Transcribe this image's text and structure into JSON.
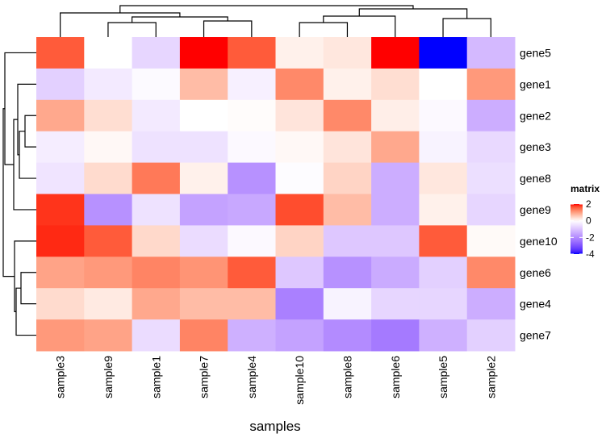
{
  "chart_data": {
    "type": "heatmap",
    "xlabel": "samples",
    "columns": [
      "sample3",
      "sample9",
      "sample1",
      "sample7",
      "sample4",
      "sample10",
      "sample8",
      "sample6",
      "sample5",
      "sample2"
    ],
    "rows": [
      "gene5",
      "gene1",
      "gene2",
      "gene3",
      "gene8",
      "gene9",
      "gene10",
      "gene6",
      "gene4",
      "gene7"
    ],
    "values": [
      [
        1.6,
        0,
        -0.7,
        2,
        1.6,
        0.15,
        0.25,
        2,
        -4,
        -1.2
      ],
      [
        -0.8,
        -0.35,
        -0.08,
        0.7,
        -0.25,
        1.2,
        0.15,
        0.35,
        0,
        1.05
      ],
      [
        0.9,
        0.35,
        -0.35,
        0,
        0.03,
        0.28,
        1.2,
        0.18,
        -0.1,
        -1.4
      ],
      [
        -0.3,
        0.07,
        -0.5,
        -0.5,
        -0.1,
        0.07,
        0.28,
        0.9,
        -0.2,
        -0.65
      ],
      [
        -0.45,
        0.38,
        1.35,
        0.15,
        -1.9,
        -0.05,
        0.45,
        -1.4,
        0.25,
        -0.55
      ],
      [
        1.85,
        -1.9,
        -0.5,
        -1.6,
        -1.5,
        1.7,
        0.7,
        -1.4,
        0.15,
        -0.7
      ],
      [
        1.9,
        1.6,
        0.4,
        -0.6,
        -0.1,
        0.45,
        -0.95,
        -0.95,
        1.6,
        0.05
      ],
      [
        0.95,
        1.05,
        1.25,
        1.1,
        1.6,
        -0.95,
        -1.9,
        -1.45,
        -0.8,
        1.2
      ],
      [
        0.38,
        0.22,
        0.9,
        0.7,
        0.7,
        -2.2,
        -0.2,
        -0.7,
        -0.7,
        -1.4
      ],
      [
        1.05,
        0.95,
        -0.6,
        1.25,
        -1.35,
        -1.6,
        -2.0,
        -2.3,
        -1.35,
        -0.8
      ]
    ],
    "color_scale": {
      "breaks": [
        -4,
        0,
        2
      ],
      "colors": [
        "#0000FF",
        "#FFFFFF",
        "#FF0000"
      ]
    },
    "legend": {
      "title": "matrix",
      "ticks": [
        "2",
        "0",
        "-2",
        "-4"
      ],
      "position": "right"
    },
    "row_dendrogram": true,
    "column_dendrogram": true
  }
}
